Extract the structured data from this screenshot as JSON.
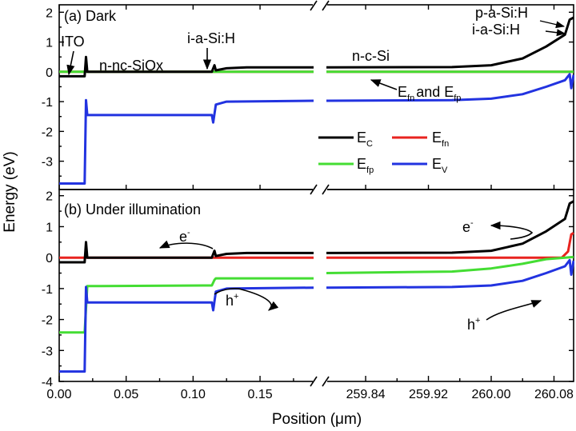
{
  "chart_data": {
    "type": "line",
    "xlabel": "Position (μm)",
    "ylabel": "Energy (eV)",
    "x_broken_axis": true,
    "x_ticks_left": [
      "0.00",
      "0.05",
      "0.10",
      "0.15"
    ],
    "x_ticks_right": [
      "259.84",
      "259.92",
      "260.00",
      "260.08"
    ],
    "ylim_top": [
      -4,
      2
    ],
    "ylim_bottom": [
      -4,
      2
    ],
    "y_ticks_top": [
      "2",
      "1",
      "0",
      "-1",
      "-2",
      "-3"
    ],
    "y_ticks_bottom": [
      "2",
      "1",
      "0",
      "-1",
      "-2",
      "-3",
      "-4"
    ],
    "legend": {
      "placement": "inside top panel, lower-right",
      "entries": [
        {
          "key": "Ec",
          "base": "E",
          "sub": "C",
          "color": "#000000"
        },
        {
          "key": "Efn",
          "base": "E",
          "sub": "fn",
          "color": "#e8231f"
        },
        {
          "key": "Efp",
          "base": "E",
          "sub": "fp",
          "color": "#44dd33"
        },
        {
          "key": "Ev",
          "base": "E",
          "sub": "V",
          "color": "#2233e0"
        }
      ]
    },
    "panels": [
      {
        "id": "dark",
        "title": "(a) Dark",
        "annotations": {
          "ito": "ITO",
          "n_nc": "n-nc-SiOx",
          "i_a_left": "i-a-Si:H",
          "n_c": "n-c-Si",
          "p_a": "p-a-Si:H",
          "i_a_right": "i-a-Si:H",
          "ef_base1": "E",
          "ef_sub1": "fn",
          "ef_mid": "and E",
          "ef_sub2": "fp"
        },
        "series": {
          "Ec": {
            "left": [
              [
                0.0,
                -0.15
              ],
              [
                0.019,
                -0.15
              ],
              [
                0.02,
                0.5
              ],
              [
                0.021,
                0.0
              ],
              [
                0.114,
                0.0
              ],
              [
                0.116,
                0.22
              ],
              [
                0.117,
                0.05
              ],
              [
                0.125,
                0.12
              ],
              [
                0.14,
                0.15
              ],
              [
                0.19,
                0.15
              ]
            ],
            "right": [
              [
                259.79,
                0.15
              ],
              [
                259.95,
                0.16
              ],
              [
                260.0,
                0.22
              ],
              [
                260.04,
                0.45
              ],
              [
                260.07,
                0.85
              ],
              [
                260.094,
                1.25
              ],
              [
                260.1,
                1.75
              ],
              [
                260.105,
                1.82
              ]
            ]
          },
          "Efn": {
            "left": [
              [
                0.0,
                0.0
              ],
              [
                0.19,
                0.0
              ]
            ],
            "right": [
              [
                259.79,
                0.0
              ],
              [
                260.105,
                0.0
              ]
            ]
          },
          "Efp": {
            "left": [
              [
                0.0,
                0.0
              ],
              [
                0.19,
                0.0
              ]
            ],
            "right": [
              [
                259.79,
                0.0
              ],
              [
                260.105,
                0.0
              ]
            ]
          },
          "Ev": {
            "left": [
              [
                0.0,
                -3.75
              ],
              [
                0.019,
                -3.75
              ],
              [
                0.02,
                -0.95
              ],
              [
                0.021,
                -1.45
              ],
              [
                0.114,
                -1.45
              ],
              [
                0.115,
                -1.7
              ],
              [
                0.117,
                -1.1
              ],
              [
                0.125,
                -1.0
              ],
              [
                0.19,
                -0.97
              ]
            ],
            "right": [
              [
                259.79,
                -0.97
              ],
              [
                259.95,
                -0.95
              ],
              [
                260.0,
                -0.9
              ],
              [
                260.04,
                -0.75
              ],
              [
                260.07,
                -0.5
              ],
              [
                260.094,
                -0.28
              ],
              [
                260.1,
                -0.08
              ],
              [
                260.102,
                -0.55
              ],
              [
                260.105,
                -0.1
              ]
            ]
          }
        }
      },
      {
        "id": "illum",
        "title": "(b) Under illumination",
        "annotations": {
          "e_left": "e",
          "e_right": "e",
          "e_sup": "-",
          "h_left": "h",
          "h_right": "h",
          "h_sup": "+"
        },
        "series": {
          "Ec": {
            "left": [
              [
                0.0,
                -0.15
              ],
              [
                0.019,
                -0.15
              ],
              [
                0.02,
                0.5
              ],
              [
                0.021,
                0.0
              ],
              [
                0.114,
                0.0
              ],
              [
                0.116,
                0.22
              ],
              [
                0.117,
                0.05
              ],
              [
                0.125,
                0.12
              ],
              [
                0.14,
                0.15
              ],
              [
                0.19,
                0.15
              ]
            ],
            "right": [
              [
                259.79,
                0.15
              ],
              [
                259.95,
                0.16
              ],
              [
                260.0,
                0.22
              ],
              [
                260.04,
                0.45
              ],
              [
                260.07,
                0.85
              ],
              [
                260.094,
                1.25
              ],
              [
                260.1,
                1.75
              ],
              [
                260.105,
                1.82
              ]
            ]
          },
          "Efn": {
            "left": [
              [
                0.0,
                0.0
              ],
              [
                0.19,
                0.0
              ]
            ],
            "right": [
              [
                259.79,
                0.0
              ],
              [
                260.09,
                0.0
              ],
              [
                260.098,
                0.2
              ],
              [
                260.102,
                0.75
              ],
              [
                260.105,
                0.8
              ]
            ]
          },
          "Efp": {
            "left": [
              [
                0.0,
                -2.42
              ],
              [
                0.019,
                -2.42
              ],
              [
                0.021,
                -0.92
              ],
              [
                0.114,
                -0.9
              ],
              [
                0.116,
                -0.72
              ],
              [
                0.117,
                -0.67
              ],
              [
                0.19,
                -0.67
              ]
            ],
            "right": [
              [
                259.79,
                -0.5
              ],
              [
                259.95,
                -0.45
              ],
              [
                260.0,
                -0.35
              ],
              [
                260.04,
                -0.2
              ],
              [
                260.07,
                -0.05
              ],
              [
                260.094,
                0.0
              ],
              [
                260.105,
                0.02
              ]
            ]
          },
          "Ev": {
            "left": [
              [
                0.0,
                -3.68
              ],
              [
                0.019,
                -3.68
              ],
              [
                0.02,
                -0.95
              ],
              [
                0.021,
                -1.45
              ],
              [
                0.114,
                -1.45
              ],
              [
                0.115,
                -1.7
              ],
              [
                0.117,
                -1.1
              ],
              [
                0.125,
                -1.0
              ],
              [
                0.19,
                -0.97
              ]
            ],
            "right": [
              [
                259.79,
                -0.97
              ],
              [
                259.95,
                -0.95
              ],
              [
                260.0,
                -0.9
              ],
              [
                260.04,
                -0.75
              ],
              [
                260.07,
                -0.5
              ],
              [
                260.094,
                -0.28
              ],
              [
                260.1,
                -0.08
              ],
              [
                260.102,
                -0.55
              ],
              [
                260.105,
                -0.1
              ]
            ]
          }
        }
      }
    ]
  }
}
